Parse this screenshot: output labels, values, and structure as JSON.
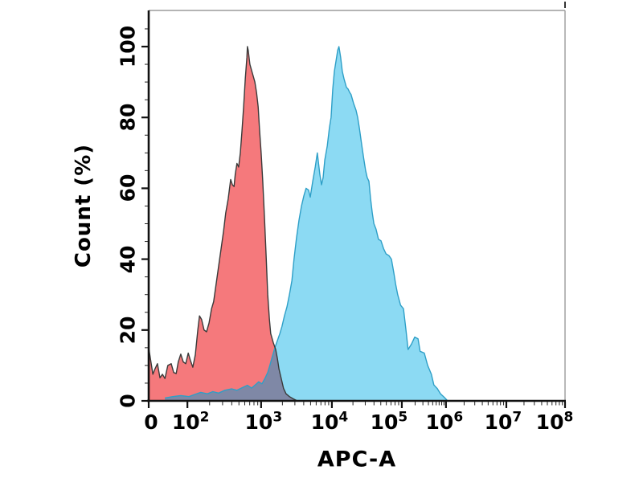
{
  "chart_data": {
    "type": "area",
    "subtype": "flow-cytometry-histogram-overlay",
    "title": "",
    "xlabel": "APC-A",
    "ylabel": "Count (%)",
    "background": "#ffffff",
    "axis_color": "#111111",
    "frame_color": "#9b9b9b",
    "overlap_fill": "#7f88a6",
    "x_axis": {
      "scale": "log-display-with-zero",
      "ticks": [
        {
          "base": "0",
          "exp": "",
          "pos": 0.0,
          "dx": 3
        },
        {
          "base": "10",
          "exp": "2",
          "pos": 0.093,
          "dx": 4
        },
        {
          "base": "10",
          "exp": "3",
          "pos": 0.27,
          "dx": 3
        },
        {
          "base": "10",
          "exp": "4",
          "pos": 0.44,
          "dx": -3
        },
        {
          "base": "10",
          "exp": "5",
          "pos": 0.608,
          "dx": -16
        },
        {
          "base": "10",
          "exp": "6",
          "pos": 0.714,
          "dx": -2
        },
        {
          "base": "10",
          "exp": "7",
          "pos": 0.859,
          "dx": -4
        },
        {
          "base": "10",
          "exp": "8",
          "pos": 1.0,
          "dx": -13
        }
      ],
      "minor_ticks_per_decade": [
        2,
        3,
        4,
        5,
        6,
        7,
        8,
        9
      ]
    },
    "y_axis": {
      "ticks": [
        0,
        20,
        40,
        60,
        80,
        100
      ],
      "minor_step": 5,
      "display_max": 110
    },
    "series": [
      {
        "name": "red-histogram",
        "fill": "#f5797c",
        "stroke": "#3a3a3a",
        "peak_pct": 100,
        "peak_x_frac": 0.237,
        "points": [
          [
            0.0,
            15
          ],
          [
            0.004,
            12
          ],
          [
            0.01,
            7.5
          ],
          [
            0.015,
            9
          ],
          [
            0.021,
            10.5
          ],
          [
            0.027,
            6.5
          ],
          [
            0.033,
            7.5
          ],
          [
            0.039,
            6.3
          ],
          [
            0.046,
            10
          ],
          [
            0.054,
            10.5
          ],
          [
            0.06,
            8
          ],
          [
            0.066,
            7.7
          ],
          [
            0.071,
            11
          ],
          [
            0.077,
            13.2
          ],
          [
            0.083,
            11
          ],
          [
            0.089,
            10.5
          ],
          [
            0.095,
            13.5
          ],
          [
            0.1,
            11.5
          ],
          [
            0.106,
            9.5
          ],
          [
            0.112,
            13
          ],
          [
            0.118,
            20
          ],
          [
            0.122,
            24
          ],
          [
            0.127,
            23
          ],
          [
            0.133,
            20
          ],
          [
            0.139,
            19.5
          ],
          [
            0.145,
            22
          ],
          [
            0.151,
            26
          ],
          [
            0.156,
            28
          ],
          [
            0.162,
            33
          ],
          [
            0.168,
            38
          ],
          [
            0.174,
            43
          ],
          [
            0.18,
            48
          ],
          [
            0.185,
            53
          ],
          [
            0.191,
            57
          ],
          [
            0.197,
            62.5
          ],
          [
            0.201,
            61
          ],
          [
            0.205,
            60.5
          ],
          [
            0.208,
            64
          ],
          [
            0.212,
            67
          ],
          [
            0.216,
            66
          ],
          [
            0.22,
            70
          ],
          [
            0.224,
            76
          ],
          [
            0.228,
            83
          ],
          [
            0.232,
            91
          ],
          [
            0.236,
            97
          ],
          [
            0.237,
            100
          ],
          [
            0.239,
            99
          ],
          [
            0.243,
            95
          ],
          [
            0.249,
            92.5
          ],
          [
            0.255,
            90
          ],
          [
            0.259,
            87
          ],
          [
            0.263,
            83
          ],
          [
            0.266,
            77
          ],
          [
            0.27,
            70
          ],
          [
            0.274,
            62
          ],
          [
            0.278,
            52
          ],
          [
            0.282,
            41
          ],
          [
            0.286,
            30
          ],
          [
            0.29,
            23
          ],
          [
            0.293,
            19
          ],
          [
            0.299,
            16.5
          ],
          [
            0.305,
            14.5
          ],
          [
            0.309,
            12
          ],
          [
            0.313,
            9
          ],
          [
            0.319,
            6
          ],
          [
            0.324,
            3.5
          ],
          [
            0.33,
            2
          ],
          [
            0.338,
            1.2
          ],
          [
            0.347,
            0.6
          ],
          [
            0.357,
            0
          ]
        ]
      },
      {
        "name": "blue-histogram",
        "fill": "#8cdaf3",
        "stroke": "#2e9fc7",
        "peak_pct": 100,
        "peak_x_frac": 0.457,
        "points": [
          [
            0.039,
            0.8
          ],
          [
            0.058,
            1.2
          ],
          [
            0.077,
            1.5
          ],
          [
            0.097,
            1.2
          ],
          [
            0.11,
            1.8
          ],
          [
            0.125,
            2.4
          ],
          [
            0.141,
            2.0
          ],
          [
            0.154,
            2.6
          ],
          [
            0.168,
            2.2
          ],
          [
            0.183,
            3.0
          ],
          [
            0.199,
            3.4
          ],
          [
            0.212,
            3.0
          ],
          [
            0.226,
            3.8
          ],
          [
            0.237,
            4.4
          ],
          [
            0.247,
            3.6
          ],
          [
            0.257,
            4.6
          ],
          [
            0.264,
            5.4
          ],
          [
            0.272,
            4.8
          ],
          [
            0.28,
            6.5
          ],
          [
            0.286,
            8.0
          ],
          [
            0.291,
            10.0
          ],
          [
            0.297,
            12.5
          ],
          [
            0.303,
            15.0
          ],
          [
            0.309,
            17.0
          ],
          [
            0.315,
            19.0
          ],
          [
            0.32,
            21.0
          ],
          [
            0.326,
            24.0
          ],
          [
            0.332,
            26.5
          ],
          [
            0.338,
            30.0
          ],
          [
            0.344,
            34.0
          ],
          [
            0.349,
            40.0
          ],
          [
            0.355,
            46.0
          ],
          [
            0.361,
            51.0
          ],
          [
            0.367,
            55.0
          ],
          [
            0.373,
            58.0
          ],
          [
            0.378,
            60.0
          ],
          [
            0.384,
            59.5
          ],
          [
            0.388,
            57.5
          ],
          [
            0.394,
            62.0
          ],
          [
            0.4,
            66.0
          ],
          [
            0.405,
            70.0
          ],
          [
            0.411,
            64.0
          ],
          [
            0.415,
            61.0
          ],
          [
            0.419,
            63.0
          ],
          [
            0.423,
            68.0
          ],
          [
            0.429,
            72.0
          ],
          [
            0.434,
            77.0
          ],
          [
            0.438,
            80.0
          ],
          [
            0.442,
            88.0
          ],
          [
            0.446,
            93.0
          ],
          [
            0.45,
            96.0
          ],
          [
            0.454,
            99.0
          ],
          [
            0.457,
            100.0
          ],
          [
            0.461,
            97.0
          ],
          [
            0.465,
            93.0
          ],
          [
            0.469,
            91.0
          ],
          [
            0.475,
            88.5
          ],
          [
            0.479,
            88.0
          ],
          [
            0.483,
            87.0
          ],
          [
            0.486,
            86.5
          ],
          [
            0.492,
            84.0
          ],
          [
            0.498,
            82.0
          ],
          [
            0.502,
            80.0
          ],
          [
            0.506,
            77.0
          ],
          [
            0.512,
            72.0
          ],
          [
            0.517,
            68.0
          ],
          [
            0.521,
            65.0
          ],
          [
            0.525,
            63.0
          ],
          [
            0.529,
            62.0
          ],
          [
            0.533,
            57.0
          ],
          [
            0.537,
            53.0
          ],
          [
            0.541,
            50.0
          ],
          [
            0.546,
            48.5
          ],
          [
            0.552,
            45.6
          ],
          [
            0.558,
            45.2
          ],
          [
            0.564,
            43.0
          ],
          [
            0.57,
            41.5
          ],
          [
            0.577,
            41.0
          ],
          [
            0.583,
            40.0
          ],
          [
            0.589,
            36.0
          ],
          [
            0.593,
            33.0
          ],
          [
            0.598,
            30.0
          ],
          [
            0.605,
            27.0
          ],
          [
            0.612,
            26.0
          ],
          [
            0.618,
            20.0
          ],
          [
            0.623,
            14.5
          ],
          [
            0.631,
            16.0
          ],
          [
            0.639,
            18.0
          ],
          [
            0.647,
            17.5
          ],
          [
            0.652,
            14.0
          ],
          [
            0.662,
            13.5
          ],
          [
            0.67,
            10.0
          ],
          [
            0.679,
            7.5
          ],
          [
            0.685,
            4.5
          ],
          [
            0.693,
            3.5
          ],
          [
            0.701,
            2.0
          ],
          [
            0.71,
            1.0
          ],
          [
            0.718,
            0.0
          ]
        ]
      }
    ]
  }
}
